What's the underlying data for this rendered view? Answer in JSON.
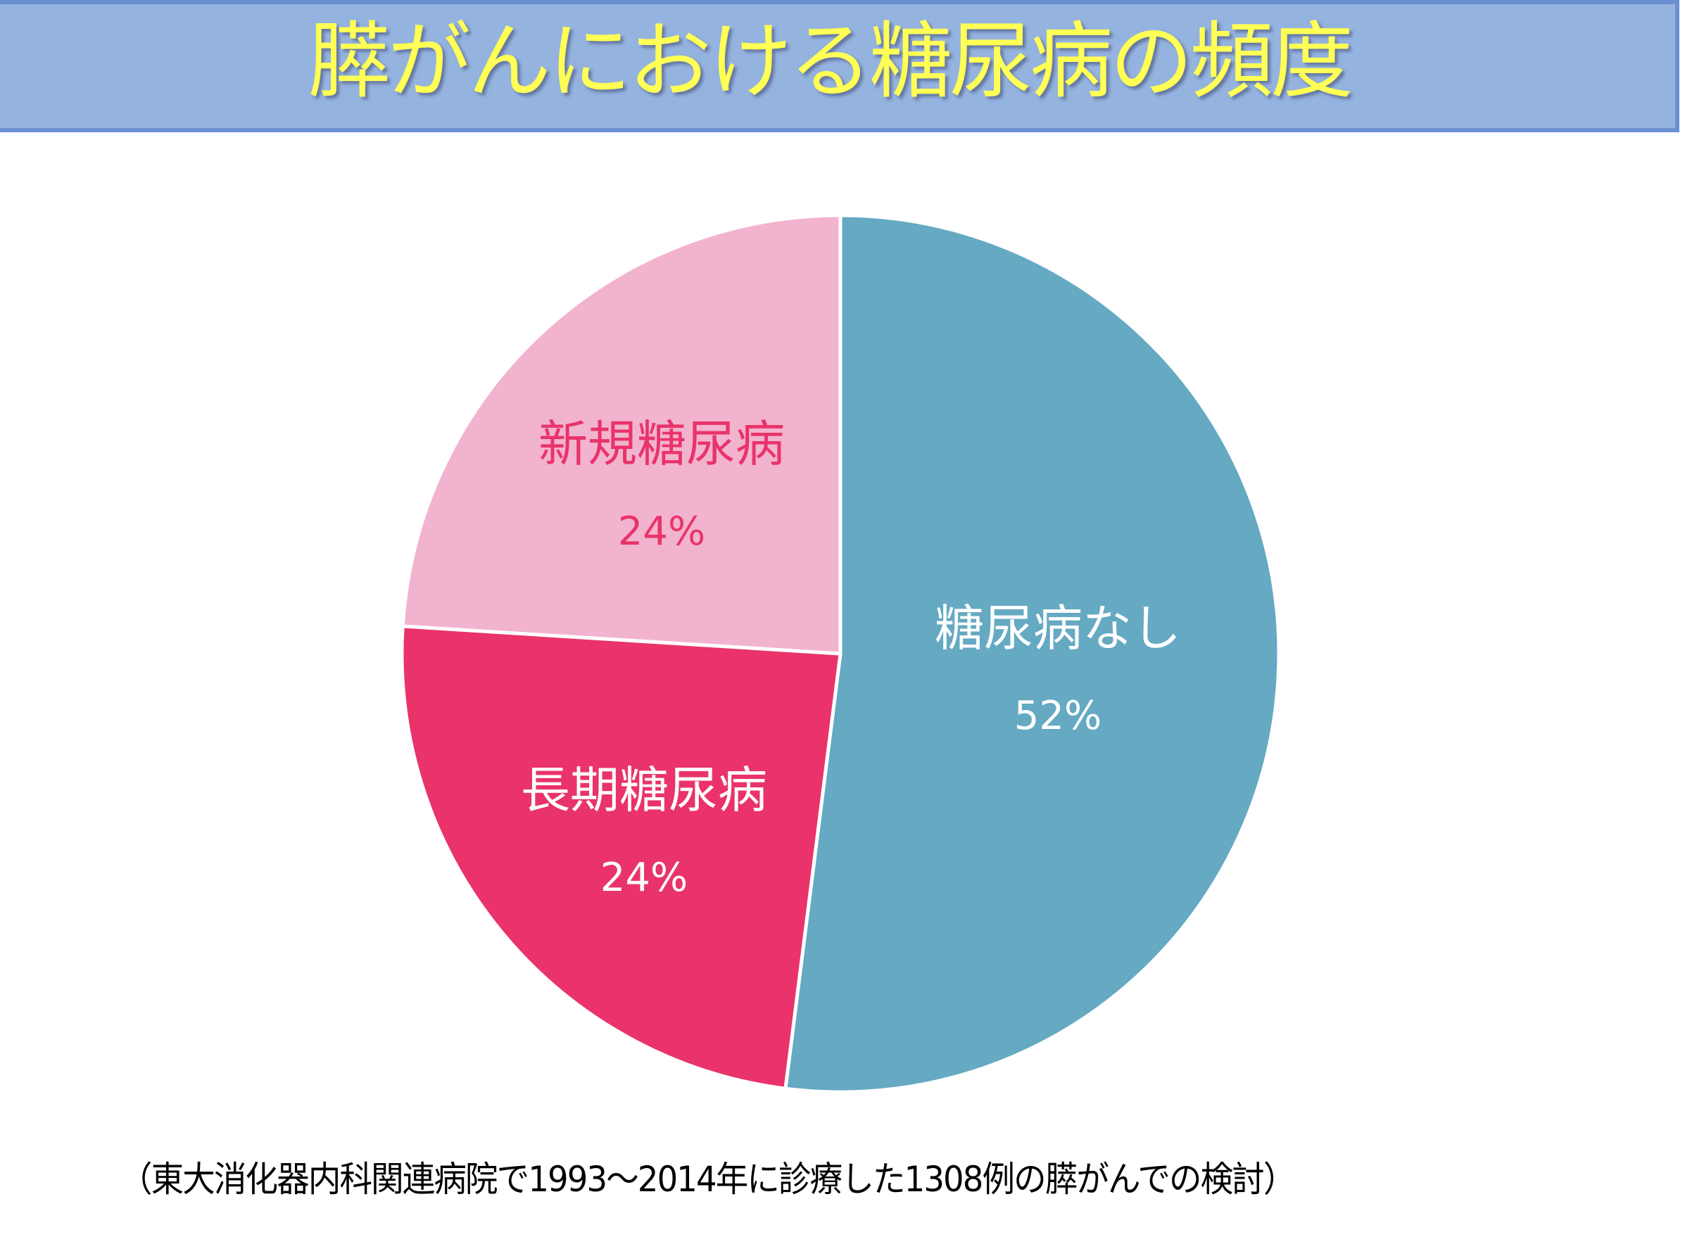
{
  "header": {
    "title": "膵がんにおける糖尿病の頻度"
  },
  "colors": {
    "banner_fill": "#95B3DF",
    "banner_border": "#6A8FD2",
    "title_text": "#FFFF55",
    "no_diabetes": "#65A9C3",
    "long_term_diabetes": "#E9336A",
    "new_onset_diabetes": "#F2B3CE"
  },
  "chart_data": {
    "type": "pie",
    "title": "膵がんにおける糖尿病の頻度",
    "categories": [
      "糖尿病なし",
      "長期糖尿病",
      "新規糖尿病"
    ],
    "values": [
      52,
      24,
      24
    ],
    "unit": "%",
    "start_angle": "12 o'clock, clockwise",
    "labels": [
      {
        "name": "糖尿病なし",
        "pct": "52%",
        "color": "#65A9C3",
        "text_color": "#FFFFFF"
      },
      {
        "name": "長期糖尿病",
        "pct": "24%",
        "color": "#E9336A",
        "text_color": "#FFFFFF"
      },
      {
        "name": "新規糖尿病",
        "pct": "24%",
        "color": "#F2B3CE",
        "text_color": "#E9336A"
      }
    ],
    "legend": "none (data labels inside slices)"
  },
  "footnote": "（東大消化器内科関連病院で1993～2014年に診療した1308例の膵がんでの検討）"
}
